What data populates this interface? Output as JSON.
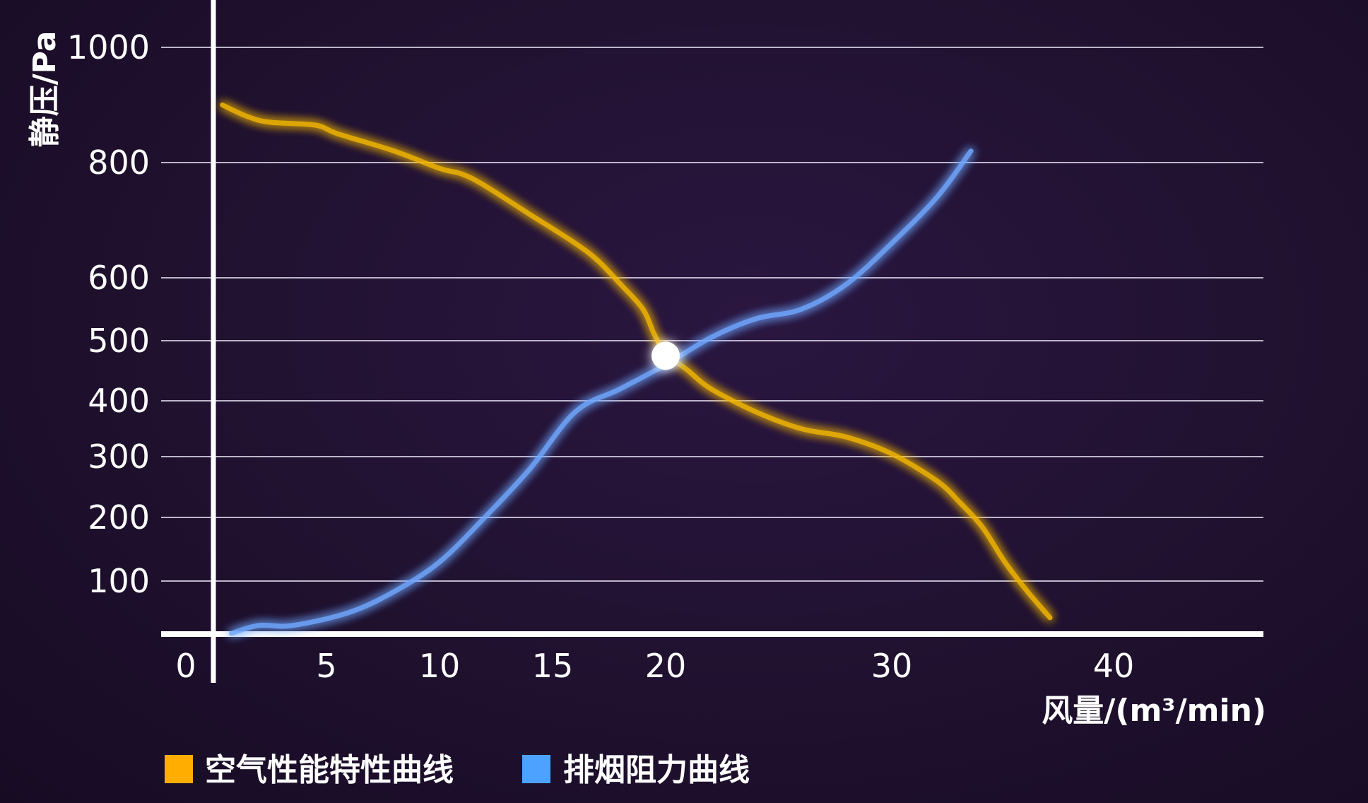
{
  "chart_data": {
    "type": "line",
    "title": "",
    "ylabel": "静压/Pa",
    "xlabel": "风量/(m³/min)",
    "x_ticks": [
      0,
      5,
      10,
      15,
      20,
      30,
      40
    ],
    "y_ticks": [
      100,
      200,
      300,
      400,
      500,
      600,
      800,
      1000
    ],
    "xlim": [
      0,
      40
    ],
    "ylim": [
      0,
      1000
    ],
    "grid": true,
    "legend_position": "bottom-left",
    "series": [
      {
        "name": "空气性能特性曲线",
        "color": "#f2b705",
        "x": [
          0.4,
          1.5,
          2.5,
          4.5,
          5.5,
          8,
          10,
          11,
          12,
          14,
          16,
          17,
          18,
          19,
          19.5,
          20,
          21,
          22,
          24,
          26,
          28,
          30,
          32,
          33,
          34,
          35,
          36,
          37
        ],
        "y": [
          900,
          880,
          870,
          865,
          850,
          820,
          790,
          780,
          760,
          710,
          660,
          630,
          590,
          550,
          510,
          480,
          450,
          420,
          380,
          350,
          335,
          305,
          260,
          225,
          185,
          130,
          80,
          30
        ]
      },
      {
        "name": "排烟阻力曲线",
        "color": "#6fa8ff",
        "x": [
          0.8,
          2,
          3.5,
          6,
          8,
          10,
          12,
          14,
          16,
          18,
          20,
          22,
          24,
          26,
          28,
          30,
          32,
          33.5
        ],
        "y": [
          0,
          15,
          15,
          40,
          80,
          130,
          200,
          280,
          380,
          420,
          460,
          505,
          535,
          550,
          590,
          660,
          740,
          820
        ]
      }
    ],
    "operating_point": {
      "x": 20,
      "y": 475
    }
  },
  "legend": {
    "items": [
      {
        "label": "空气性能特性曲线",
        "color": "#ffad00"
      },
      {
        "label": "排烟阻力曲线",
        "color": "#4ea2ff"
      }
    ]
  }
}
